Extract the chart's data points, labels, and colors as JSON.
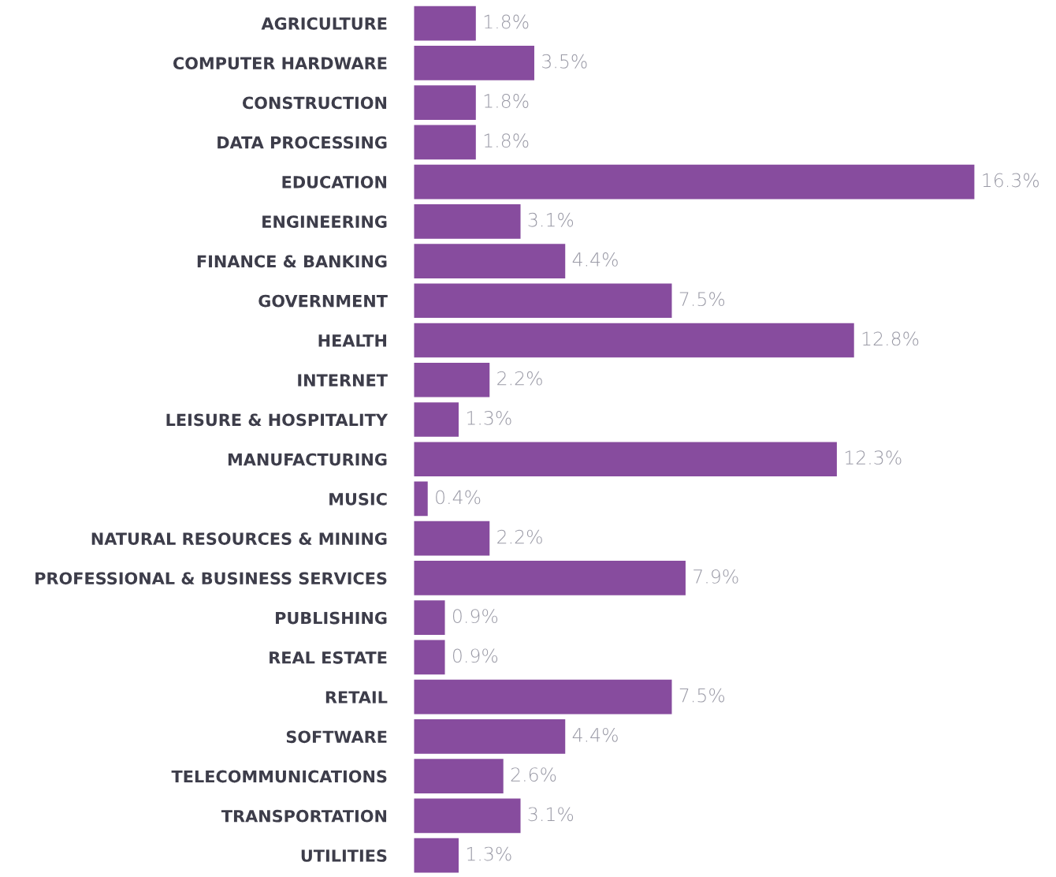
{
  "chart_data": {
    "type": "bar",
    "orientation": "horizontal",
    "categories": [
      "AGRICULTURE",
      "COMPUTER HARDWARE",
      "CONSTRUCTION",
      "DATA PROCESSING",
      "EDUCATION",
      "ENGINEERING",
      "FINANCE & BANKING",
      "GOVERNMENT",
      "HEALTH",
      "INTERNET",
      "LEISURE & HOSPITALITY",
      "MANUFACTURING",
      "MUSIC",
      "NATURAL RESOURCES & MINING",
      "PROFESSIONAL & BUSINESS SERVICES",
      "PUBLISHING",
      "REAL ESTATE",
      "RETAIL",
      "SOFTWARE",
      "TELECOMMUNICATIONS",
      "TRANSPORTATION",
      "UTILITIES"
    ],
    "values": [
      1.8,
      3.5,
      1.8,
      1.8,
      16.3,
      3.1,
      4.4,
      7.5,
      12.8,
      2.2,
      1.3,
      12.3,
      0.4,
      2.2,
      7.9,
      0.9,
      0.9,
      7.5,
      4.4,
      2.6,
      3.1,
      1.3
    ],
    "value_labels": [
      "1.8%",
      "3.5%",
      "1.8%",
      "1.8%",
      "16.3%",
      "3.1%",
      "4.4%",
      "7.5%",
      "12.8%",
      "2.2%",
      "1.3%",
      "12.3%",
      "0.4%",
      "2.2%",
      "7.9%",
      "0.9%",
      "0.9%",
      "7.5%",
      "4.4%",
      "2.6%",
      "3.1%",
      "1.3%"
    ],
    "color": "#874c9e"
  }
}
